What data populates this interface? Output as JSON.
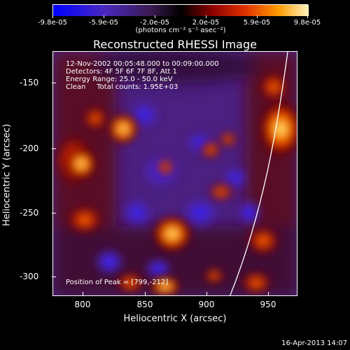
{
  "colorbar": {
    "tick_labels": [
      "-9.8e-05",
      "-5.9e-05",
      "-2.0e-05",
      "2.0e-05",
      "5.9e-05",
      "9.8e-05"
    ],
    "units_label": "(photons cm⁻² s⁻¹ asec⁻²)",
    "colors": [
      "#0000ff",
      "#5a2aa0",
      "#3a1a4a",
      "#000000",
      "#8a0000",
      "#e03000",
      "#ff9000",
      "#fff0a0"
    ]
  },
  "title": "Reconstructed RHESSI Image",
  "annotations": {
    "line1": "12-Nov-2002 00:05:48.000 to 00:09:00.000",
    "line2": "Detectors: 4F 5F 6F 7F 8F, Att 1",
    "line3": "Energy Range: 25.0 - 50.0 keV",
    "line4": "Clean     Total counts: 1.95E+03",
    "peak": "Position of Peak = [799,-212]"
  },
  "axes": {
    "x_label": "Heliocentric X (arcsec)",
    "y_label": "Heliocentric Y (arcsec)",
    "x_ticks": [
      "800",
      "850",
      "900",
      "950"
    ],
    "y_ticks": [
      "-150",
      "-200",
      "-250",
      "-300"
    ],
    "x_range": [
      780,
      970
    ],
    "y_range": [
      -320,
      -130
    ]
  },
  "timestamp": "16-Apr-2013 14:07"
}
